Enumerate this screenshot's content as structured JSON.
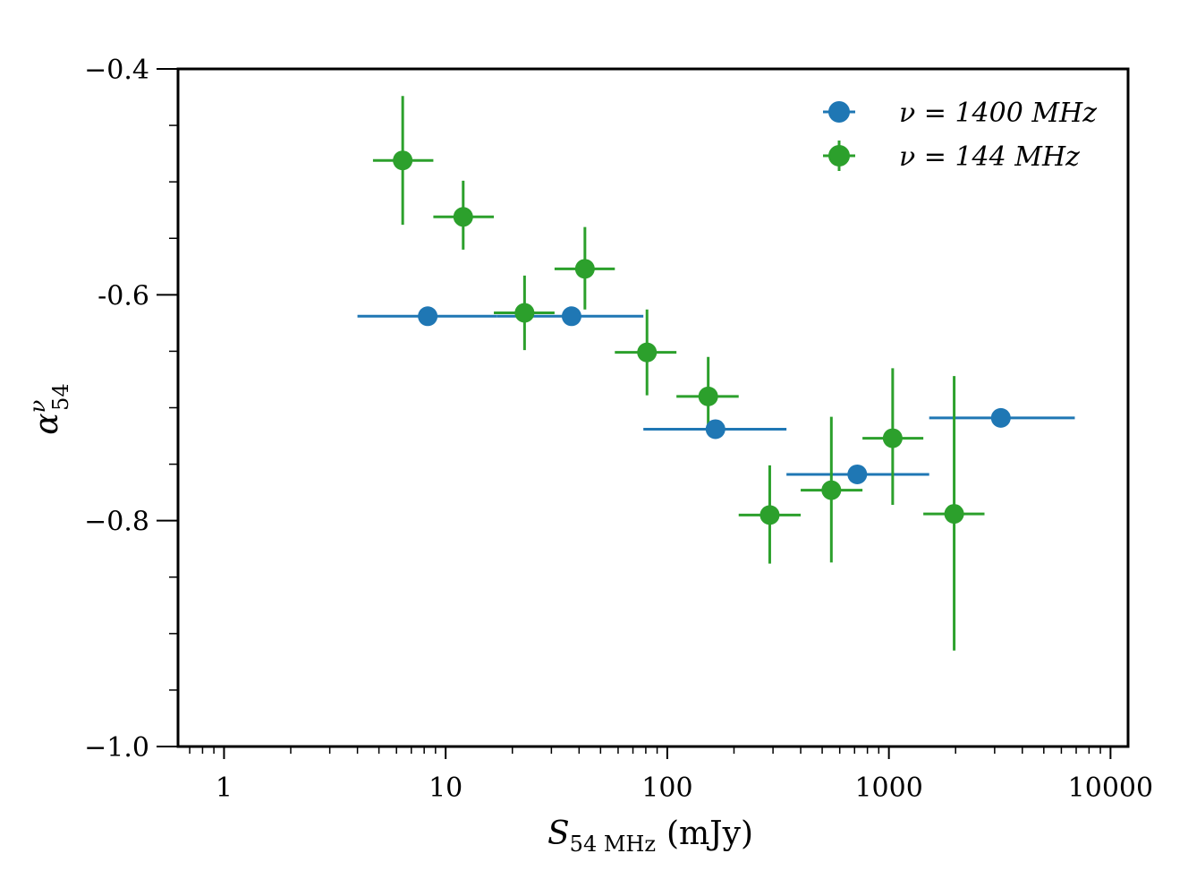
{
  "chart_data": {
    "type": "scatter",
    "title": "",
    "xlabel": {
      "main": "S",
      "sub": "54 MHz",
      "unit": "(mJy)"
    },
    "ylabel": {
      "main": "α",
      "sup": "ν",
      "sub": "54"
    },
    "xscale": "log",
    "xlim": [
      0.62,
      12000
    ],
    "ylim": [
      -1.0,
      -0.4
    ],
    "x_ticks": [
      1,
      10,
      100,
      1000,
      10000
    ],
    "x_tick_labels": [
      "1",
      "10",
      "100",
      "1000",
      "10000"
    ],
    "y_ticks": [
      -1.0,
      -0.8,
      -0.6,
      -0.4
    ],
    "y_tick_labels": [
      "−1.0",
      "−0.8",
      "-0.6",
      "−0.4"
    ],
    "y_minor_step": 0.05,
    "grid": false,
    "legend_position": "top-right",
    "series": [
      {
        "name": "ν = 1400 MHz",
        "color": "#1f77b4",
        "points": [
          {
            "x": 8.3,
            "y": -0.619,
            "xlo": 4.0,
            "xhi": 17.0
          },
          {
            "x": 37,
            "y": -0.619,
            "xlo": 17.0,
            "xhi": 78
          },
          {
            "x": 165,
            "y": -0.719,
            "xlo": 78,
            "xhi": 345
          },
          {
            "x": 720,
            "y": -0.759,
            "xlo": 345,
            "xhi": 1520
          },
          {
            "x": 3200,
            "y": -0.709,
            "xlo": 1520,
            "xhi": 6900
          }
        ]
      },
      {
        "name": "ν = 144 MHz",
        "color": "#2ca02c",
        "points": [
          {
            "x": 6.4,
            "y": -0.481,
            "xlo": 4.7,
            "xhi": 8.8,
            "ylo": -0.538,
            "yhi": -0.424
          },
          {
            "x": 12.0,
            "y": -0.531,
            "xlo": 8.8,
            "xhi": 16.5,
            "ylo": -0.56,
            "yhi": -0.499
          },
          {
            "x": 22.7,
            "y": -0.616,
            "xlo": 16.5,
            "xhi": 31,
            "ylo": -0.649,
            "yhi": -0.583
          },
          {
            "x": 42.5,
            "y": -0.577,
            "xlo": 31,
            "xhi": 58,
            "ylo": -0.613,
            "yhi": -0.54
          },
          {
            "x": 81,
            "y": -0.651,
            "xlo": 58,
            "xhi": 110,
            "ylo": -0.689,
            "yhi": -0.613
          },
          {
            "x": 153,
            "y": -0.69,
            "xlo": 110,
            "xhi": 210,
            "ylo": -0.721,
            "yhi": -0.655
          },
          {
            "x": 290,
            "y": -0.795,
            "xlo": 210,
            "xhi": 400,
            "ylo": -0.838,
            "yhi": -0.751
          },
          {
            "x": 550,
            "y": -0.773,
            "xlo": 400,
            "xhi": 760,
            "ylo": -0.837,
            "yhi": -0.708
          },
          {
            "x": 1040,
            "y": -0.727,
            "xlo": 760,
            "xhi": 1430,
            "ylo": -0.786,
            "yhi": -0.665
          },
          {
            "x": 1970,
            "y": -0.794,
            "xlo": 1430,
            "xhi": 2700,
            "ylo": -0.915,
            "yhi": -0.672
          }
        ]
      }
    ]
  }
}
